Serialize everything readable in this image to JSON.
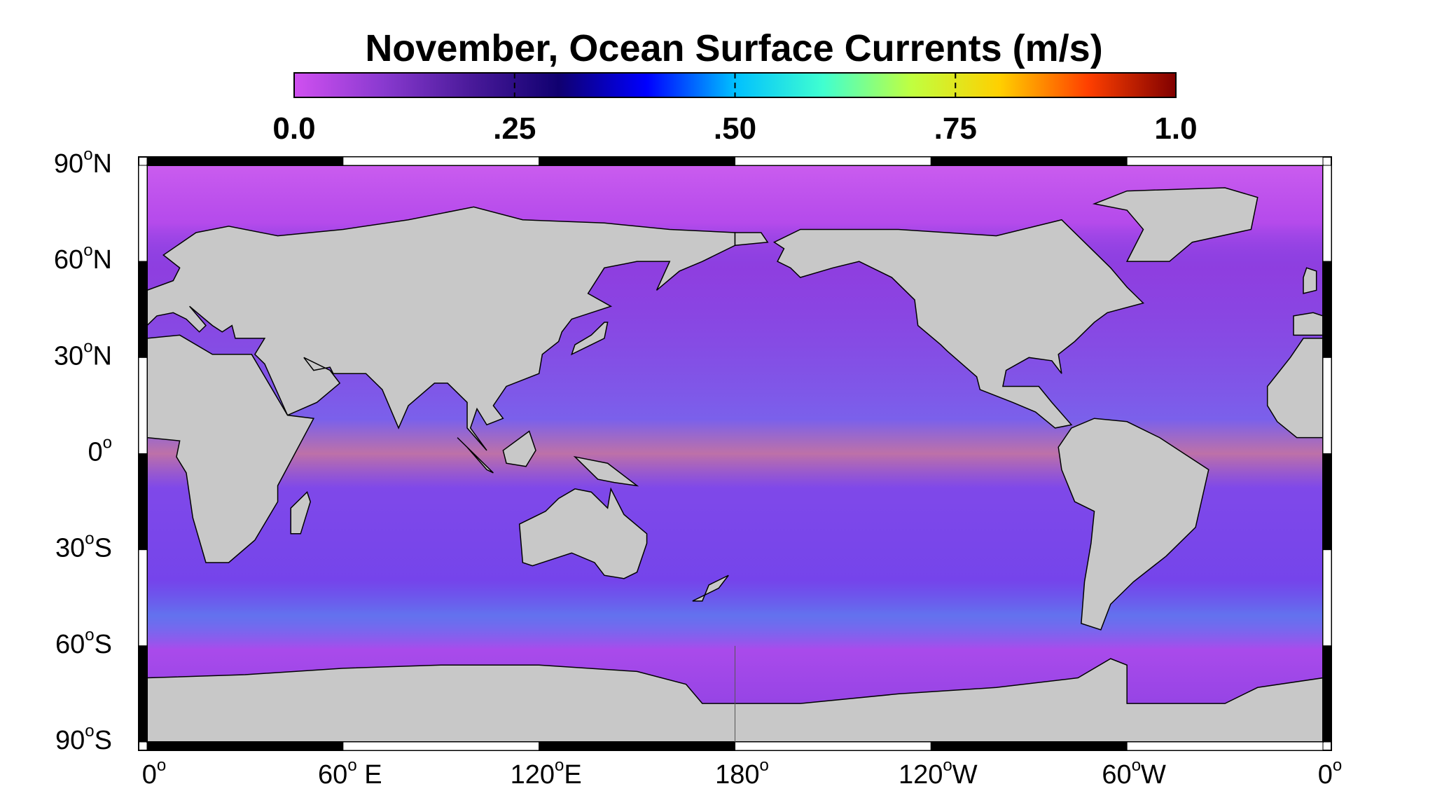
{
  "chart_data": {
    "type": "map",
    "title": "November, Ocean Surface Currents (m/s)",
    "colorbar": {
      "lim": [
        0,
        1
      ],
      "colors": [
        "#d050f0",
        "#8a3ad0",
        "#4a1a9a",
        "#100070",
        "#0000ff",
        "#00c0ff",
        "#40ffd0",
        "#c0ff40",
        "#ffd000",
        "#ff4000",
        "#800000"
      ],
      "ticks": [
        {
          "value": 0,
          "label": "0.0"
        },
        {
          "value": 0.25,
          "label": ".25"
        },
        {
          "value": 0.5,
          "label": ".50"
        },
        {
          "value": 0.75,
          "label": ".75"
        },
        {
          "value": 1,
          "label": "1.0"
        }
      ]
    },
    "xlim": [
      0,
      360
    ],
    "xticks": [
      {
        "value": 0,
        "number": "0",
        "degree": "o"
      },
      {
        "value": 60,
        "number": "60",
        "degree": "o",
        "hemisphere": " E"
      },
      {
        "value": 120,
        "number": "120",
        "degree": "o",
        "hemisphere": "E"
      },
      {
        "value": 180,
        "number": "180",
        "degree": "o"
      },
      {
        "value": 240,
        "number": "120",
        "degree": "o",
        "hemisphere": "W"
      },
      {
        "value": 300,
        "number": "60",
        "degree": "o",
        "hemisphere": "W"
      },
      {
        "value": 360,
        "number": "0",
        "degree": "o"
      }
    ],
    "ylim": [
      -90,
      90
    ],
    "yticks": [
      {
        "value": 90,
        "number": "90",
        "degree": "o",
        "hemisphere": "N"
      },
      {
        "value": 60,
        "number": "60",
        "degree": "o",
        "hemisphere": "N"
      },
      {
        "value": 30,
        "number": "30",
        "degree": "o",
        "hemisphere": "N"
      },
      {
        "value": 0,
        "number": "0",
        "degree": "o"
      },
      {
        "value": -30,
        "number": "30",
        "degree": "o",
        "hemisphere": "S"
      },
      {
        "value": -60,
        "number": "60",
        "degree": "o",
        "hemisphere": "S"
      },
      {
        "value": -90,
        "number": "90",
        "degree": "o",
        "hemisphere": "S"
      }
    ],
    "land_color": "#c8c8c8",
    "ocean_color": "#9a3ee0"
  }
}
